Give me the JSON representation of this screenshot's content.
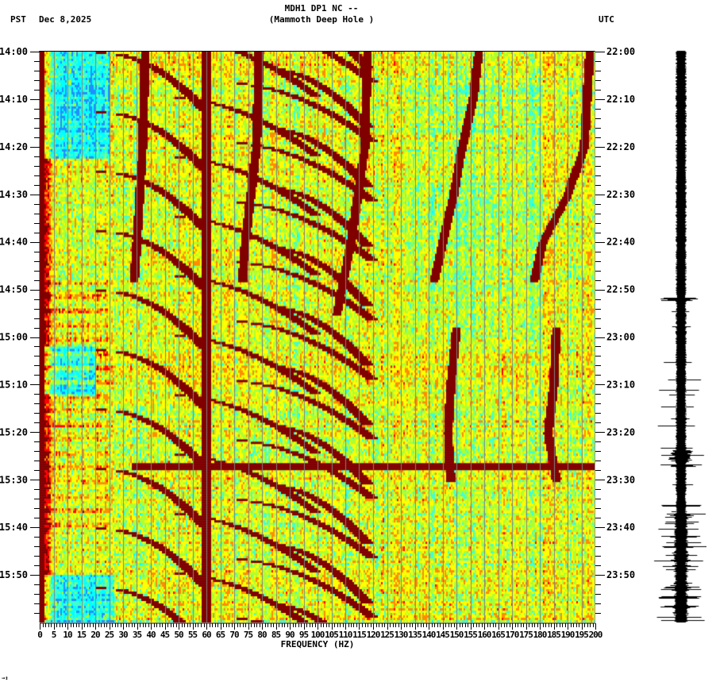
{
  "header": {
    "title_line1": "MDH1 DP1 NC --",
    "title_line2": "(Mammoth Deep Hole )",
    "left_timezone": "PST",
    "date": "Dec 8,2025",
    "right_timezone": "UTC"
  },
  "footer": {
    "mark": "→↕"
  },
  "colors": {
    "dark_red": "#800000",
    "red": "#ff0000",
    "orange": "#ff8c00",
    "yellow": "#ffff00",
    "green_yellow": "#adff2f",
    "aqua": "#40ffd0",
    "cyan": "#00ffff",
    "blue": "#1e90ff",
    "grid": "#808080",
    "trace": "#000000"
  },
  "chart_data": {
    "type": "heatmap",
    "title": "MDH1 DP1 NC -- (Mammoth Deep Hole )",
    "subtitle": "Dec 8,2025",
    "xlabel": "FREQUENCY (HZ)",
    "ylabel_left": "PST",
    "ylabel_right": "UTC",
    "xlim": [
      0,
      200
    ],
    "x_ticks": [
      0,
      5,
      10,
      15,
      20,
      25,
      30,
      35,
      40,
      45,
      50,
      55,
      60,
      65,
      70,
      75,
      80,
      85,
      90,
      95,
      100,
      105,
      110,
      115,
      120,
      125,
      130,
      135,
      140,
      145,
      150,
      155,
      160,
      165,
      170,
      175,
      180,
      185,
      190,
      195,
      200
    ],
    "x_tick_labels": [
      "0",
      "5",
      "10",
      "15",
      "20",
      "25",
      "30",
      "35",
      "40",
      "45",
      "50",
      "55",
      "60",
      "65",
      "70",
      "75",
      "80",
      "85",
      "90",
      "95",
      "100",
      "105",
      "110",
      "115",
      "120",
      "125",
      "130",
      "135",
      "140",
      "145",
      "150",
      "155",
      "160",
      "165",
      "170",
      "175",
      "180",
      "185",
      "190",
      "195",
      "200"
    ],
    "y_ticks_left": [
      "14:00",
      "14:10",
      "14:20",
      "14:30",
      "14:40",
      "14:50",
      "15:00",
      "15:10",
      "15:20",
      "15:30",
      "15:40",
      "15:50"
    ],
    "y_ticks_right": [
      "22:00",
      "22:10",
      "22:20",
      "22:30",
      "22:40",
      "22:50",
      "23:00",
      "23:10",
      "23:20",
      "23:30",
      "23:40",
      "23:50"
    ],
    "time_range_minutes": 120,
    "grid": "vertical lines every 5 Hz",
    "colormap": [
      "#1e90ff",
      "#00ffff",
      "#40ffd0",
      "#adff2f",
      "#ffff00",
      "#ff8c00",
      "#ff0000",
      "#800000"
    ],
    "features": {
      "constant_line_hz": 60,
      "low_freq_energy_hz": [
        0,
        2
      ],
      "broadband_event_minutes": [
        86.5,
        87.5
      ],
      "broadband_event_min_hz": 33,
      "sweeping_tones": [
        {
          "start_hz": 22,
          "end_hz": 60,
          "period_min": 12.5,
          "phase": 0
        },
        {
          "start_hz": 45,
          "end_hz": 100,
          "period_min": 12.5,
          "phase": 0.25
        },
        {
          "start_hz": 65,
          "end_hz": 120,
          "period_min": 12.5,
          "phase": 0.5
        },
        {
          "start_hz": 80,
          "end_hz": 118,
          "period_min": 12.5,
          "phase": 0.75
        }
      ],
      "drifting_lines": [
        {
          "points": [
            [
              0,
              158
            ],
            [
              10,
              156
            ],
            [
              20,
              152
            ],
            [
              30,
              149
            ],
            [
              40,
              145
            ],
            [
              48,
              142
            ]
          ]
        },
        {
          "points": [
            [
              0,
              198
            ],
            [
              10,
              197
            ],
            [
              20,
              196
            ],
            [
              30,
              190
            ],
            [
              40,
              181
            ],
            [
              48,
              178
            ]
          ]
        },
        {
          "points": [
            [
              0,
              118
            ],
            [
              20,
              117
            ],
            [
              40,
              112
            ],
            [
              55,
              107
            ]
          ]
        },
        {
          "points": [
            [
              0,
              79
            ],
            [
              20,
              78
            ],
            [
              40,
              74
            ],
            [
              48,
              73
            ]
          ]
        },
        {
          "points": [
            [
              0,
              38
            ],
            [
              20,
              37
            ],
            [
              40,
              35
            ],
            [
              48,
              34
            ]
          ]
        },
        {
          "points": [
            [
              58,
              150
            ],
            [
              70,
              148
            ],
            [
              80,
              147
            ],
            [
              90,
              148
            ]
          ]
        },
        {
          "points": [
            [
              58,
              186
            ],
            [
              70,
              185
            ],
            [
              80,
              183
            ],
            [
              90,
              186
            ]
          ]
        }
      ],
      "blue_patches": [
        {
          "t0": 0,
          "t1": 22,
          "f0": 2,
          "f1": 25
        },
        {
          "t0": 62,
          "t1": 72,
          "f0": 2,
          "f1": 20
        },
        {
          "t0": 110,
          "t1": 120,
          "f0": 2,
          "f1": 27
        }
      ]
    },
    "seismogram": {
      "position": "right side",
      "quiet_until_min": 50,
      "spikes_after_min": 50,
      "local_event_min": 85,
      "increased_activity_after_min": 97
    }
  }
}
